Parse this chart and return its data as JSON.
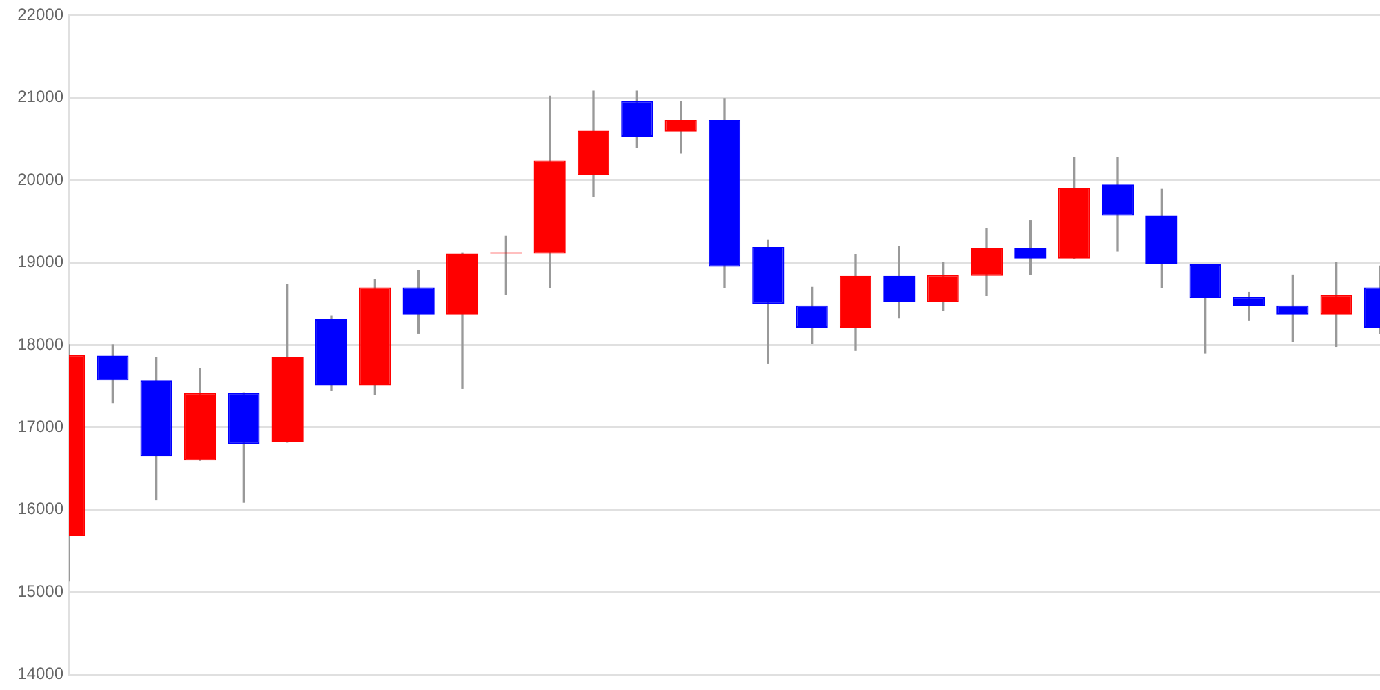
{
  "chart_data": {
    "type": "candlestick",
    "categories": [
      null,
      null,
      null,
      null,
      null,
      null,
      null,
      null,
      null,
      null,
      null,
      null,
      null,
      null,
      null,
      null,
      null,
      null,
      null,
      null,
      null,
      null,
      null,
      null,
      null,
      null,
      null,
      null,
      null,
      null,
      null
    ],
    "ohlc": [
      [
        15680,
        18000,
        15140,
        17880
      ],
      [
        17870,
        18000,
        17300,
        17570
      ],
      [
        17570,
        17850,
        16120,
        16650
      ],
      [
        16600,
        17710,
        16600,
        17420
      ],
      [
        17420,
        17420,
        16090,
        16800
      ],
      [
        16820,
        18740,
        16820,
        17850
      ],
      [
        18310,
        18350,
        17450,
        17510
      ],
      [
        17510,
        18790,
        17400,
        18700
      ],
      [
        18700,
        18900,
        18140,
        18370
      ],
      [
        18370,
        19120,
        17470,
        19110
      ],
      [
        19110,
        19320,
        18610,
        19110
      ],
      [
        19110,
        21020,
        18700,
        20240
      ],
      [
        20060,
        21080,
        19800,
        20600
      ],
      [
        20960,
        21080,
        20400,
        20530
      ],
      [
        20590,
        20950,
        20330,
        20730
      ],
      [
        20730,
        20990,
        18700,
        18950
      ],
      [
        19190,
        19270,
        17780,
        18500
      ],
      [
        18480,
        18700,
        18020,
        18210
      ],
      [
        18210,
        19100,
        17940,
        18840
      ],
      [
        18840,
        19200,
        18330,
        18520
      ],
      [
        18520,
        19000,
        18420,
        18850
      ],
      [
        18840,
        19410,
        18600,
        19180
      ],
      [
        19180,
        19510,
        18860,
        19050
      ],
      [
        19050,
        20280,
        19050,
        19910
      ],
      [
        19950,
        20280,
        19140,
        19570
      ],
      [
        19570,
        19890,
        18700,
        18980
      ],
      [
        18980,
        18980,
        17900,
        18570
      ],
      [
        18580,
        18640,
        18300,
        18470
      ],
      [
        18480,
        18850,
        18040,
        18370
      ],
      [
        18370,
        19000,
        17980,
        18610
      ],
      [
        18700,
        18960,
        18140,
        18210
      ]
    ],
    "colors": [
      "#ff0000",
      "#0000ff",
      "#0000ff",
      "#ff0000",
      "#0000ff",
      "#ff0000",
      "#0000ff",
      "#ff0000",
      "#0000ff",
      "#ff0000",
      "#ff0000",
      "#ff0000",
      "#ff0000",
      "#0000ff",
      "#ff0000",
      "#0000ff",
      "#0000ff",
      "#0000ff",
      "#ff0000",
      "#0000ff",
      "#ff0000",
      "#ff0000",
      "#0000ff",
      "#ff0000",
      "#0000ff",
      "#0000ff",
      "#0000ff",
      "#0000ff",
      "#0000ff",
      "#ff0000",
      "#0000ff"
    ],
    "ylim": [
      14000,
      22000
    ],
    "yticks": [
      14000,
      15000,
      16000,
      17000,
      18000,
      19000,
      20000,
      21000,
      22000
    ],
    "grid": "y",
    "tick_labels": "y"
  }
}
